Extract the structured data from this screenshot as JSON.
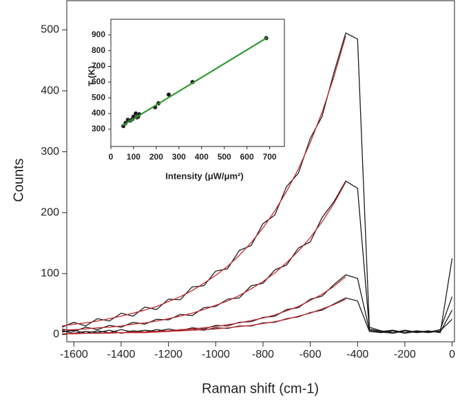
{
  "chart_data": [
    {
      "type": "line",
      "xlabel": "Raman shift (cm-1)",
      "ylabel": "Counts",
      "x": [
        -1650,
        -1600,
        -1550,
        -1500,
        -1450,
        -1400,
        -1350,
        -1300,
        -1250,
        -1200,
        -1150,
        -1100,
        -1050,
        -1000,
        -950,
        -900,
        -850,
        -800,
        -750,
        -700,
        -650,
        -600,
        -550,
        -500,
        -450,
        -400,
        -350,
        -300,
        -250,
        -200,
        -150,
        -100,
        -50,
        0
      ],
      "series": [
        {
          "color": "#1a1a1a",
          "values": [
            12,
            20,
            14,
            26,
            22,
            35,
            30,
            45,
            41,
            58,
            57,
            78,
            80,
            104,
            108,
            138,
            146,
            182,
            196,
            243,
            265,
            322,
            358,
            430,
            495,
            485,
            12,
            6,
            3,
            7,
            4,
            6,
            3,
            125
          ]
        },
        {
          "color": "#1a1a1a",
          "values": [
            9,
            5,
            12,
            8,
            15,
            12,
            20,
            17,
            25,
            24,
            33,
            31,
            44,
            46,
            58,
            60,
            80,
            84,
            106,
            114,
            142,
            152,
            192,
            218,
            252,
            240,
            9,
            5,
            7,
            3,
            6,
            4,
            8,
            62
          ]
        },
        {
          "color": "#1a1a1a",
          "values": [
            4,
            7,
            2,
            6,
            3,
            8,
            4,
            7,
            5,
            9,
            6,
            11,
            9,
            15,
            14,
            20,
            21,
            28,
            30,
            41,
            44,
            58,
            63,
            82,
            98,
            92,
            7,
            4,
            2,
            6,
            3,
            5,
            4,
            40
          ]
        },
        {
          "color": "#1a1a1a",
          "values": [
            6,
            2,
            5,
            3,
            7,
            2,
            6,
            4,
            8,
            5,
            7,
            9,
            7,
            11,
            10,
            14,
            14,
            19,
            20,
            26,
            29,
            36,
            40,
            50,
            60,
            55,
            5,
            3,
            6,
            2,
            5,
            3,
            6,
            25
          ]
        },
        {
          "color": "#c0282d",
          "values": [
            14,
            17,
            19,
            22,
            26,
            30,
            35,
            40,
            46,
            54,
            62,
            72,
            84,
            97,
            112,
            130,
            151,
            175,
            203,
            235,
            272,
            315,
            365,
            423,
            490,
            null,
            null,
            null,
            null,
            null,
            null,
            null,
            null,
            null
          ]
        },
        {
          "color": "#c0282d",
          "values": [
            7,
            8,
            9,
            11,
            12,
            14,
            17,
            19,
            22,
            26,
            30,
            35,
            41,
            48,
            55,
            64,
            75,
            87,
            101,
            118,
            137,
            159,
            185,
            215,
            250,
            null,
            null,
            null,
            null,
            null,
            null,
            null,
            null,
            null
          ]
        },
        {
          "color": "#c0282d",
          "values": [
            1,
            2,
            2,
            2,
            3,
            3,
            4,
            4,
            5,
            6,
            8,
            9,
            11,
            13,
            16,
            19,
            23,
            27,
            32,
            39,
            46,
            56,
            66,
            79,
            95,
            null,
            null,
            null,
            null,
            null,
            null,
            null,
            null,
            null
          ]
        },
        {
          "color": "#c0282d",
          "values": [
            1,
            1,
            2,
            2,
            2,
            3,
            3,
            3,
            4,
            5,
            6,
            7,
            8,
            9,
            11,
            13,
            15,
            18,
            21,
            25,
            30,
            35,
            42,
            49,
            58,
            null,
            null,
            null,
            null,
            null,
            null,
            null,
            null,
            null
          ]
        }
      ],
      "xlim": [
        -1630,
        10
      ],
      "ylim": [
        -12,
        548
      ],
      "xticks": [
        -1600,
        -1400,
        -1200,
        -1000,
        -800,
        -600,
        -400,
        -200,
        0
      ],
      "yticks": [
        0,
        100,
        200,
        300,
        400,
        500
      ]
    },
    {
      "type": "scatter",
      "xlabel": "Intensity (μW/μm²)",
      "ylabel": "T (K)",
      "x": [
        55,
        65,
        75,
        85,
        95,
        100,
        110,
        115,
        120,
        125,
        195,
        210,
        255,
        360,
        685
      ],
      "values": [
        320,
        340,
        360,
        355,
        365,
        380,
        400,
        375,
        380,
        395,
        440,
        465,
        520,
        600,
        880
      ],
      "color": "#111111",
      "fit": {
        "color": "#2e9a2e",
        "x": [
          50,
          690
        ],
        "values": [
          322,
          884
        ]
      },
      "xlim": [
        0,
        765
      ],
      "ylim": [
        190,
        1000
      ],
      "xticks": [
        0,
        100,
        200,
        300,
        400,
        500,
        600,
        700
      ],
      "yticks": [
        300,
        400,
        500,
        600,
        700,
        800,
        900
      ]
    }
  ]
}
